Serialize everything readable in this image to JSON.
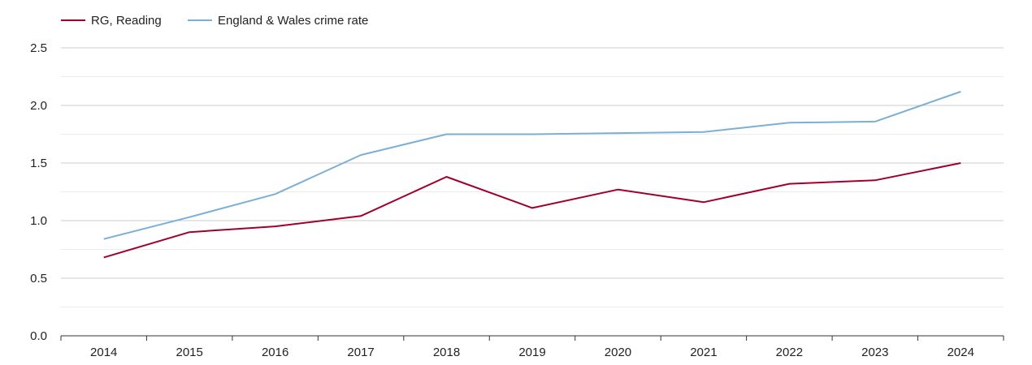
{
  "chart_data": {
    "type": "line",
    "title": "",
    "xlabel": "",
    "ylabel": "",
    "categories": [
      "2014",
      "2015",
      "2016",
      "2017",
      "2018",
      "2019",
      "2020",
      "2021",
      "2022",
      "2023",
      "2024"
    ],
    "series": [
      {
        "name": "RG, Reading",
        "color": "#a0002b",
        "values": [
          0.68,
          0.9,
          0.95,
          1.04,
          1.38,
          1.11,
          1.27,
          1.16,
          1.32,
          1.35,
          1.5
        ]
      },
      {
        "name": "England & Wales crime rate",
        "color": "#7bafd4",
        "values": [
          0.84,
          1.03,
          1.23,
          1.57,
          1.75,
          1.75,
          1.76,
          1.77,
          1.85,
          1.86,
          2.12
        ]
      }
    ],
    "ylim": [
      0,
      2.5
    ],
    "yticks": [
      "0.0",
      "0.5",
      "1.0",
      "1.5",
      "2.0",
      "2.5"
    ],
    "grid": true,
    "legend_position": "top-left"
  }
}
